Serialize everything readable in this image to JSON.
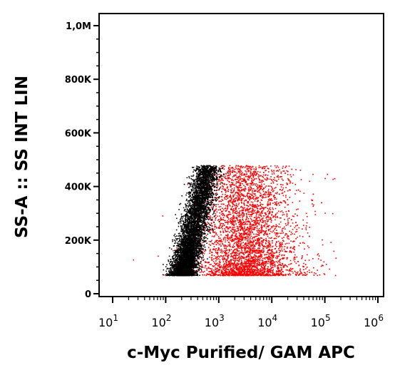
{
  "chart_data": {
    "type": "scatter",
    "title": "",
    "xlabel": "c-Myc Purified/ GAM APC",
    "ylabel": "SS-A :: SS INT LIN",
    "x_scale": "log",
    "x_range": [
      10,
      1000000
    ],
    "y_range": [
      0,
      1050000
    ],
    "x_ticks": [
      {
        "value": 10,
        "base": "10",
        "exp": "1"
      },
      {
        "value": 100,
        "base": "10",
        "exp": "2"
      },
      {
        "value": 1000,
        "base": "10",
        "exp": "3"
      },
      {
        "value": 10000,
        "base": "10",
        "exp": "4"
      },
      {
        "value": 100000,
        "base": "10",
        "exp": "5"
      },
      {
        "value": 1000000,
        "base": "10",
        "exp": "6"
      }
    ],
    "y_ticks": [
      {
        "value": 0,
        "label": "0"
      },
      {
        "value": 200000,
        "label": "200K"
      },
      {
        "value": 400000,
        "label": "400K"
      },
      {
        "value": 600000,
        "label": "600K"
      },
      {
        "value": 800000,
        "label": "800K"
      },
      {
        "value": 1000000,
        "label": "1,0M"
      }
    ],
    "grid": false,
    "legend": "none",
    "series": [
      {
        "color": "#000000",
        "description_points": "dense population",
        "clusters": [
          {
            "x_log10_center": 2.55,
            "x_log10_spread": 0.22,
            "y_min": 70000,
            "y_max": 480000,
            "skew": "diagonal-lower-left-to-upper-right",
            "count": 6000
          }
        ]
      },
      {
        "color": "#ff0000",
        "clusters": [
          {
            "x_log10_center": 3.45,
            "x_log10_spread": 0.45,
            "y_min": 70000,
            "y_max": 480000,
            "count": 4500
          }
        ]
      }
    ]
  }
}
